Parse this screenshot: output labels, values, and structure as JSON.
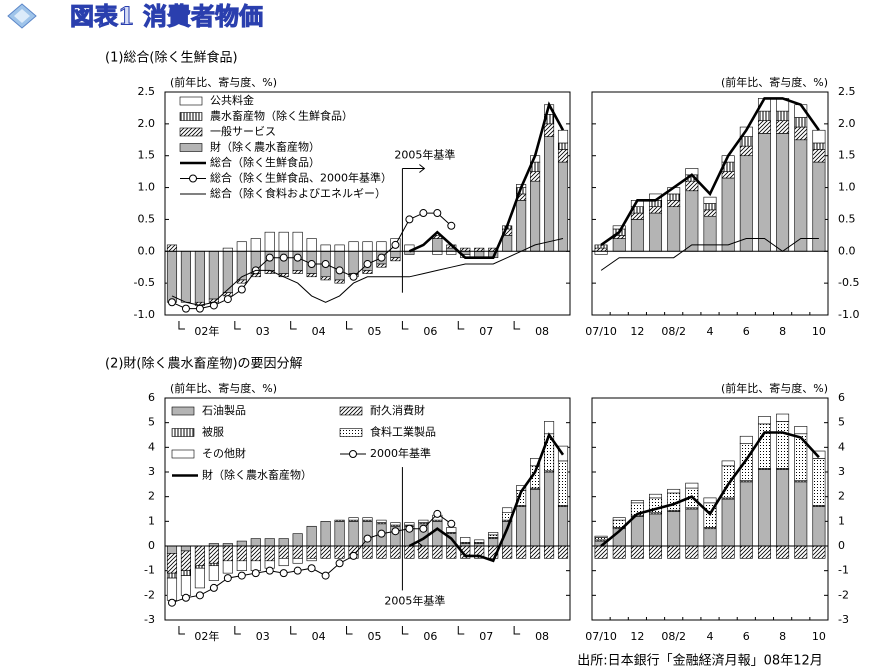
{
  "title": "図表1 消費者物価",
  "source": "出所:日本銀行「金融経済月報」08年12月",
  "chart_data": [
    {
      "type": "bar",
      "subtitle": "(1)総合(除く生鮮食品)",
      "ylabel": "(前年比、寄与度、%)",
      "annotation": "2005年基準",
      "ylim": [
        -1,
        2.5
      ],
      "yticks": [
        {
          "value": -1,
          "label": "-1.0"
        },
        -0.5,
        {
          "value": 0,
          "label": "0.0"
        },
        0.5,
        {
          "value": 1,
          "label": "1.0"
        },
        1.5,
        {
          "value": 2,
          "label": "2.0"
        },
        2.5
      ],
      "stack_order": "reverse",
      "categories": [
        null,
        null,
        "02年",
        null,
        null,
        null,
        "03",
        null,
        null,
        null,
        "04",
        null,
        null,
        null,
        "05",
        null,
        null,
        null,
        "06",
        null,
        null,
        null,
        "07",
        null,
        null,
        null,
        "08",
        null,
        null
      ],
      "monthly_categories": [
        "07/10",
        null,
        "12",
        null,
        "08/2",
        null,
        "4",
        null,
        "6",
        null,
        "8",
        null,
        "10"
      ],
      "series": [
        {
          "name": "公共料金",
          "kind": "bar",
          "fill": "solid",
          "color": "#ffffff",
          "values": [
            0,
            0,
            0,
            0,
            0.05,
            0.15,
            0.2,
            0.3,
            0.3,
            0.3,
            0.2,
            0.1,
            0.1,
            0.15,
            0.15,
            0.15,
            0.2,
            0.1,
            0,
            -0.05,
            -0.05,
            -0.05,
            0,
            0,
            0,
            0.05,
            0.1,
            0.15,
            0.2
          ],
          "monthly_values": [
            -0.05,
            0.05,
            0.1,
            0.1,
            0.1,
            0.1,
            0.1,
            0.1,
            0.15,
            0.2,
            0.2,
            0.2,
            0.2
          ]
        },
        {
          "name": "農水畜産物（除く生鮮食品）",
          "kind": "bar",
          "fill": "stripe",
          "color": "#000000",
          "values": [
            0,
            0,
            0,
            0,
            0,
            0,
            0,
            0,
            0,
            0,
            0,
            0,
            0,
            0,
            0,
            0,
            0,
            0,
            0,
            0,
            0,
            0,
            0,
            0,
            0.05,
            0.1,
            0.15,
            0.15,
            0.1
          ],
          "monthly_values": [
            0.05,
            0.1,
            0.1,
            0.1,
            0.1,
            0.1,
            0.1,
            0.15,
            0.15,
            0.15,
            0.15,
            0.15,
            0.1
          ]
        },
        {
          "name": "一般サービス",
          "kind": "bar",
          "fill": "hatch",
          "color": "#000000",
          "values": [
            0.1,
            0,
            -0.05,
            -0.05,
            -0.05,
            -0.05,
            -0.05,
            -0.05,
            -0.05,
            -0.05,
            -0.05,
            -0.05,
            -0.05,
            -0.05,
            -0.05,
            -0.05,
            -0.05,
            0,
            0,
            0.05,
            0.05,
            0.05,
            0.05,
            0.05,
            0.1,
            0.1,
            0.15,
            0.2,
            0.2
          ],
          "monthly_values": [
            0.05,
            0.05,
            0.1,
            0.1,
            0.1,
            0.15,
            0.1,
            0.1,
            0.15,
            0.2,
            0.2,
            0.2,
            0.2
          ]
        },
        {
          "name": "財（除く農水畜産物）",
          "kind": "bar",
          "fill": "solid",
          "color": "#b4b4b4",
          "values": [
            -0.8,
            -0.8,
            -0.8,
            -0.75,
            -0.65,
            -0.45,
            -0.35,
            -0.3,
            -0.35,
            -0.3,
            -0.35,
            -0.4,
            -0.45,
            -0.35,
            -0.3,
            -0.2,
            -0.1,
            -0.05,
            0,
            0.2,
            0.05,
            -0.05,
            -0.1,
            -0.1,
            0.25,
            0.8,
            1.1,
            1.8,
            1.4
          ],
          "monthly_values": [
            0,
            0.2,
            0.5,
            0.6,
            0.7,
            0.95,
            0.55,
            1.15,
            1.5,
            1.85,
            1.85,
            1.75,
            1.4
          ]
        },
        {
          "name": "総合（除く生鮮食品）",
          "kind": "line",
          "style": "thick",
          "color": "#000000",
          "values": [
            null,
            null,
            null,
            null,
            null,
            null,
            null,
            null,
            null,
            null,
            null,
            null,
            null,
            null,
            null,
            null,
            null,
            0,
            0.1,
            0.3,
            0.1,
            -0.1,
            -0.1,
            -0.1,
            0.4,
            1.0,
            1.5,
            2.3,
            1.9
          ],
          "monthly_values": [
            0.1,
            0.3,
            0.8,
            0.8,
            1.0,
            1.2,
            0.9,
            1.5,
            1.9,
            2.4,
            2.4,
            2.3,
            1.9
          ]
        },
        {
          "name": "総合（除く生鮮食品、2000年基準）",
          "kind": "line",
          "style": "thin",
          "marker": "circle",
          "color": "#000000",
          "values": [
            -0.8,
            -0.9,
            -0.9,
            -0.85,
            -0.75,
            -0.6,
            -0.3,
            -0.1,
            -0.1,
            -0.1,
            -0.2,
            -0.2,
            -0.3,
            -0.4,
            -0.2,
            -0.1,
            0.1,
            0.5,
            0.6,
            0.6,
            0.4,
            null,
            null,
            null,
            null,
            null,
            null,
            null,
            null
          ]
        },
        {
          "name": "総合（除く食料およびエネルギー）",
          "kind": "line",
          "style": "thin",
          "color": "#000000",
          "values": [
            -0.7,
            -0.8,
            -0.85,
            -0.8,
            -0.6,
            -0.4,
            -0.3,
            -0.3,
            -0.4,
            -0.5,
            -0.7,
            -0.8,
            -0.7,
            -0.5,
            -0.4,
            -0.4,
            -0.4,
            -0.4,
            -0.35,
            -0.3,
            -0.25,
            -0.2,
            -0.2,
            -0.2,
            -0.1,
            0,
            0.1,
            0.15,
            0.2
          ],
          "monthly_values": [
            -0.3,
            -0.1,
            -0.1,
            -0.1,
            -0.1,
            0.1,
            0.1,
            0.1,
            0.2,
            0.2,
            0,
            0.2,
            0.2
          ]
        }
      ]
    },
    {
      "type": "bar",
      "subtitle": "(2)財(除く農水畜産物)の要因分解",
      "ylabel": "(前年比、寄与度、%)",
      "annotation": "2005年基準",
      "ylim": [
        -3,
        6
      ],
      "yticks": [
        -3,
        -2,
        -1,
        0,
        1,
        2,
        3,
        4,
        5,
        6
      ],
      "stack_order": "forward",
      "categories": [
        null,
        null,
        "02年",
        null,
        null,
        null,
        "03",
        null,
        null,
        null,
        "04",
        null,
        null,
        null,
        "05",
        null,
        null,
        null,
        "06",
        null,
        null,
        null,
        "07",
        null,
        null,
        null,
        "08",
        null,
        null
      ],
      "monthly_categories": [
        "07/10",
        null,
        "12",
        null,
        "08/2",
        null,
        "4",
        null,
        "6",
        null,
        "8",
        null,
        "10"
      ],
      "series": [
        {
          "name": "石油製品",
          "kind": "bar",
          "fill": "solid",
          "color": "#b4b4b4",
          "values": [
            -0.3,
            -0.2,
            0,
            0.1,
            0.1,
            0.2,
            0.3,
            0.3,
            0.3,
            0.5,
            0.8,
            1.0,
            1.0,
            1.0,
            1.0,
            0.9,
            0.8,
            0.8,
            0.9,
            1.0,
            0.5,
            0.1,
            0.1,
            0.3,
            1.0,
            1.6,
            2.3,
            3.0,
            1.6
          ],
          "monthly_values": [
            0.2,
            0.7,
            1.2,
            1.3,
            1.4,
            1.5,
            0.7,
            1.9,
            2.6,
            3.1,
            3.1,
            2.6,
            1.6
          ]
        },
        {
          "name": "耐久消費財",
          "kind": "bar",
          "fill": "hatch",
          "color": "#000000",
          "values": [
            -0.8,
            -0.8,
            -0.8,
            -0.7,
            -0.6,
            -0.6,
            -0.6,
            -0.6,
            -0.5,
            -0.5,
            -0.5,
            -0.5,
            -0.5,
            -0.5,
            -0.5,
            -0.5,
            -0.5,
            -0.5,
            -0.5,
            -0.5,
            -0.5,
            -0.5,
            -0.5,
            -0.5,
            -0.5,
            -0.5,
            -0.5,
            -0.5,
            -0.5
          ],
          "monthly_values": [
            -0.5,
            -0.5,
            -0.5,
            -0.5,
            -0.5,
            -0.5,
            -0.5,
            -0.5,
            -0.5,
            -0.5,
            -0.5,
            -0.5,
            -0.5
          ]
        },
        {
          "name": "被服",
          "kind": "bar",
          "fill": "stripe",
          "color": "#000000",
          "values": [
            -0.2,
            -0.2,
            -0.1,
            -0.1,
            0,
            0,
            0,
            0,
            0,
            0,
            0,
            0,
            0.05,
            0.05,
            0.05,
            0.05,
            0.05,
            0.05,
            0.05,
            0.05,
            0.05,
            0.05,
            0.05,
            0.05,
            0.05,
            0.05,
            0.05,
            0.05,
            0.05
          ],
          "monthly_values": [
            0.05,
            0.05,
            0.05,
            0.05,
            0.05,
            0.05,
            0.05,
            0.05,
            0.05,
            0.05,
            0.05,
            0.05,
            0.05
          ]
        },
        {
          "name": "食料工業製品",
          "kind": "bar",
          "fill": "dots",
          "color": "#000000",
          "values": [
            0,
            0,
            0,
            0,
            0,
            0,
            0,
            0,
            0,
            0,
            0,
            0,
            0,
            0,
            0,
            0,
            0,
            0,
            0,
            0,
            0,
            0,
            0,
            0.1,
            0.3,
            0.6,
            0.9,
            1.5,
            1.8
          ],
          "monthly_values": [
            0.1,
            0.3,
            0.5,
            0.6,
            0.7,
            0.8,
            1.0,
            1.3,
            1.5,
            1.8,
            1.9,
            1.9,
            1.9
          ]
        },
        {
          "name": "その他財",
          "kind": "bar",
          "fill": "solid",
          "color": "#ffffff",
          "values": [
            -0.9,
            -0.8,
            -0.8,
            -0.6,
            -0.5,
            -0.4,
            -0.4,
            -0.3,
            -0.3,
            -0.2,
            -0.1,
            0,
            0,
            0.1,
            0.1,
            0.1,
            0.1,
            0.1,
            0.1,
            0.2,
            0.2,
            0.2,
            0.1,
            0.1,
            0.2,
            0.2,
            0.3,
            0.5,
            0.6
          ],
          "monthly_values": [
            0.05,
            0.1,
            0.1,
            0.15,
            0.15,
            0.2,
            0.2,
            0.2,
            0.3,
            0.3,
            0.3,
            0.3,
            0.3
          ]
        },
        {
          "name": "2000年基準",
          "kind": "line",
          "style": "thin",
          "marker": "circle",
          "color": "#000000",
          "values": [
            -2.3,
            -2.1,
            -2.0,
            -1.7,
            -1.3,
            -1.2,
            -1.1,
            -1.0,
            -1.1,
            -1.0,
            -0.9,
            -1.2,
            -0.7,
            -0.4,
            0.3,
            0.5,
            0.6,
            0.7,
            0.7,
            1.3,
            0.9,
            null,
            null,
            null,
            null,
            null,
            null,
            null,
            null
          ]
        },
        {
          "name": "財（除く農水畜産物）",
          "kind": "line",
          "style": "thick",
          "color": "#000000",
          "values": [
            null,
            null,
            null,
            null,
            null,
            null,
            null,
            null,
            null,
            null,
            null,
            null,
            null,
            null,
            null,
            null,
            null,
            0,
            0.3,
            0.7,
            0.3,
            -0.4,
            -0.4,
            -0.6,
            0.7,
            2.2,
            3.0,
            4.5,
            3.7
          ],
          "monthly_values": [
            0,
            0.6,
            1.3,
            1.5,
            1.7,
            2.0,
            1.3,
            2.5,
            3.5,
            4.6,
            4.6,
            4.4,
            3.6
          ]
        }
      ]
    }
  ]
}
